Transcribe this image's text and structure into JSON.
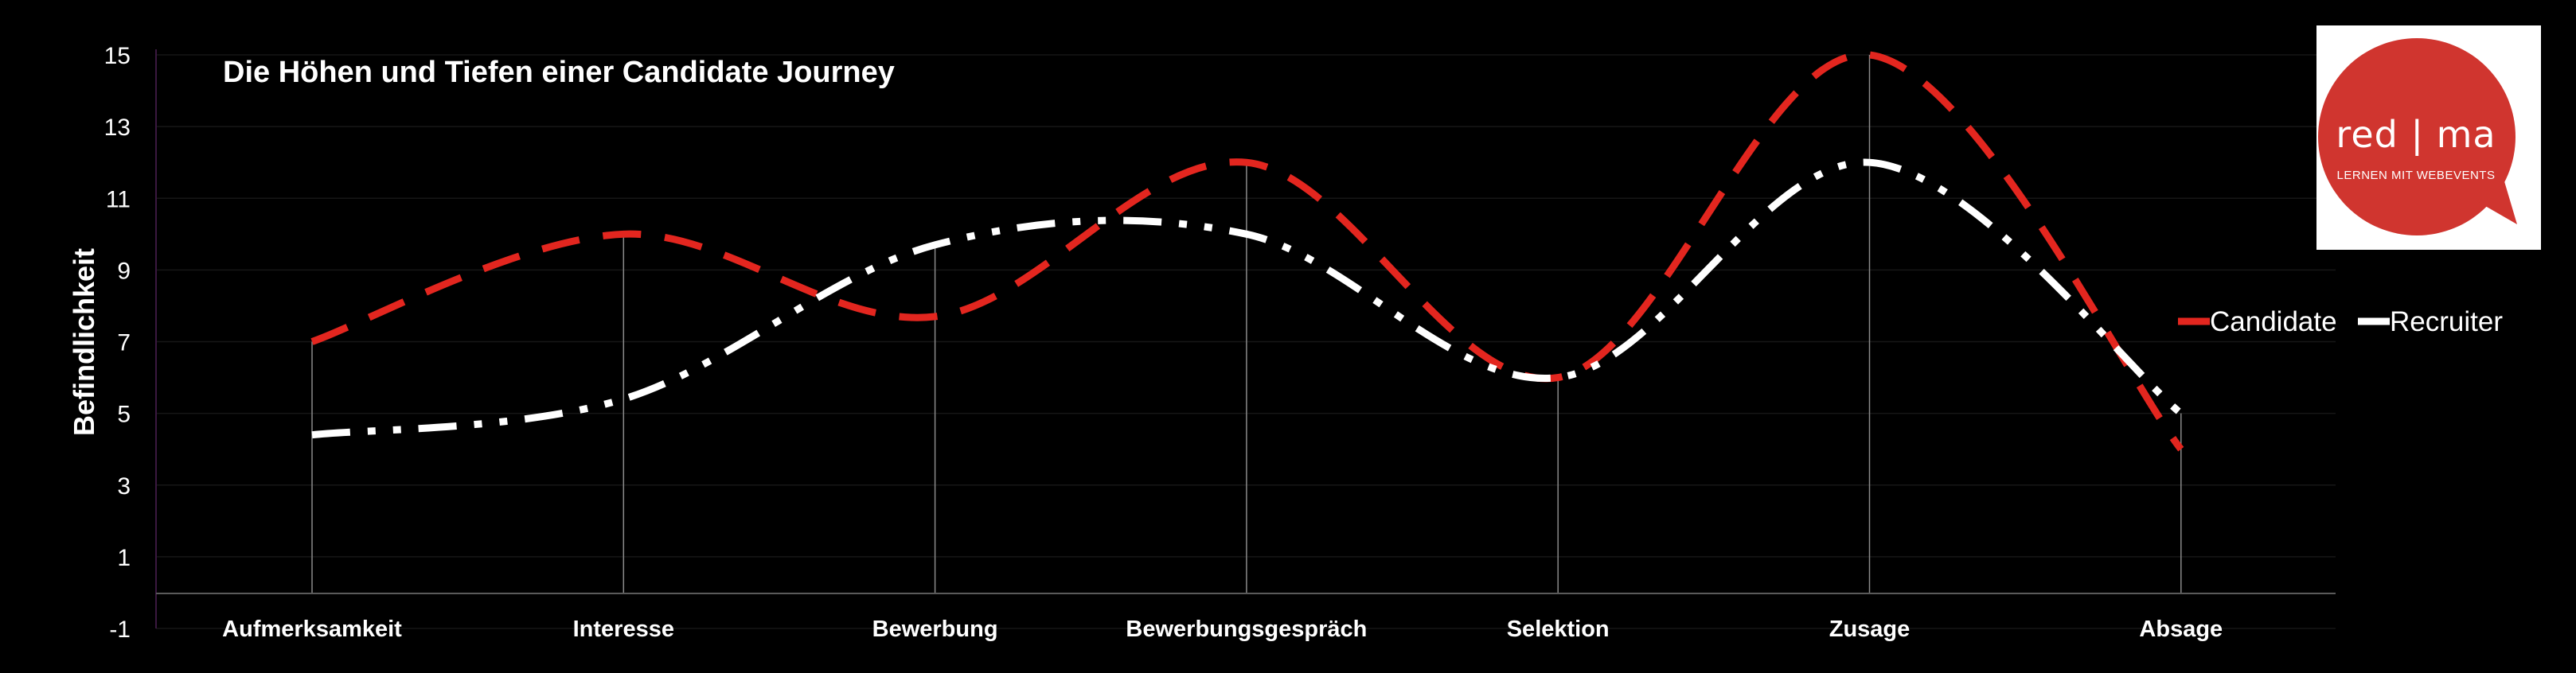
{
  "chart_data": {
    "type": "line",
    "title": "Die Höhen und Tiefen einer Candidate Journey",
    "xlabel": "",
    "ylabel": "Befindlichkeit",
    "categories": [
      "Aufmerksamkeit",
      "Interesse",
      "Bewerbung",
      "Bewerbungsgespräch",
      "Selektion",
      "Zusage",
      "Absage"
    ],
    "ylim": [
      -1,
      15
    ],
    "yticks": [
      "15",
      "13",
      "11",
      "9",
      "7",
      "5",
      "3",
      "1",
      "-1"
    ],
    "grid": true,
    "legend_position": "right",
    "series": [
      {
        "name": "Candidate",
        "color": "#e3261f",
        "values": [
          7,
          10,
          7.7,
          12,
          6,
          15,
          4
        ]
      },
      {
        "name": "Recruiter",
        "color": "#ffffff",
        "values": [
          4.4,
          5.4,
          9.7,
          10,
          6,
          12,
          5
        ]
      }
    ]
  },
  "logo": {
    "main_text": "red | ma",
    "sub_text": "LERNEN MIT WEBEVENTS",
    "color": "#d0352f"
  }
}
